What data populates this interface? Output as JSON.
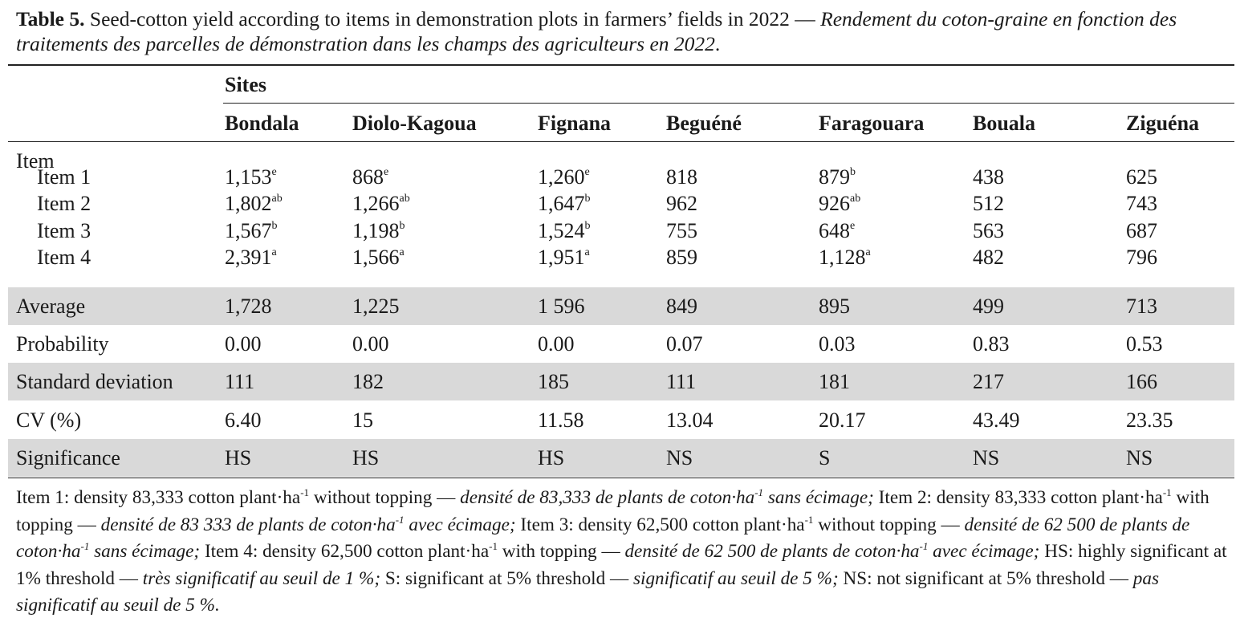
{
  "caption": {
    "label": "Table 5.",
    "english": " Seed-cotton yield according to items in demonstration plots in farmers’ fields in 2022 — ",
    "french": "Rendement du coton-graine en fonction des traitements des parcelles de démonstration dans les champs des agriculteurs en 2022",
    "end": "."
  },
  "table": {
    "group_header": "Sites",
    "sites": [
      "Bondala",
      "Diolo-Kagoua",
      "Fignana",
      "Beguéné",
      "Faragouara",
      "Bouala",
      "Ziguéna"
    ],
    "item_header": "Item",
    "items": [
      {
        "label": "Item 1",
        "cells": [
          [
            "1,153",
            "e"
          ],
          [
            "868",
            "e"
          ],
          [
            "1,260",
            "e"
          ],
          [
            "818",
            ""
          ],
          [
            "879",
            "b"
          ],
          [
            "438",
            ""
          ],
          [
            "625",
            ""
          ]
        ]
      },
      {
        "label": "Item 2",
        "cells": [
          [
            "1,802",
            "ab"
          ],
          [
            "1,266",
            "ab"
          ],
          [
            "1,647",
            "b"
          ],
          [
            "962",
            ""
          ],
          [
            "926",
            "ab"
          ],
          [
            "512",
            ""
          ],
          [
            "743",
            ""
          ]
        ]
      },
      {
        "label": "Item 3",
        "cells": [
          [
            "1,567",
            "b"
          ],
          [
            "1,198",
            "b"
          ],
          [
            "1,524",
            "b"
          ],
          [
            "755",
            ""
          ],
          [
            "648",
            "e"
          ],
          [
            "563",
            ""
          ],
          [
            "687",
            ""
          ]
        ]
      },
      {
        "label": "Item 4",
        "cells": [
          [
            "2,391",
            "a"
          ],
          [
            "1,566",
            "a"
          ],
          [
            "1,951",
            "a"
          ],
          [
            "859",
            ""
          ],
          [
            "1,128",
            "a"
          ],
          [
            "482",
            ""
          ],
          [
            "796",
            ""
          ]
        ]
      }
    ],
    "stats": [
      {
        "label": "Average",
        "values": [
          "1,728",
          "1,225",
          "1 596",
          "849",
          "895",
          "499",
          "713"
        ],
        "shaded": true
      },
      {
        "label": "Probability",
        "values": [
          "0.00",
          "0.00",
          "0.00",
          "0.07",
          "0.03",
          "0.83",
          "0.53"
        ],
        "shaded": false
      },
      {
        "label": "Standard deviation",
        "values": [
          "111",
          "182",
          "185",
          "111",
          "181",
          "217",
          "166"
        ],
        "shaded": true
      },
      {
        "label": "CV (%)",
        "values": [
          "6.40",
          "15",
          "11.58",
          "13.04",
          "20.17",
          "43.49",
          "23.35"
        ],
        "shaded": false
      },
      {
        "label": "Significance",
        "values": [
          "HS",
          "HS",
          "HS",
          "NS",
          "S",
          "NS",
          "NS"
        ],
        "shaded": true
      }
    ],
    "shade_color": "#d9d9d9"
  },
  "footnote": {
    "i1_en_a": "Item 1: density 83,333 cotton plant·ha",
    "i1_en_b": " without topping — ",
    "i1_fr_a": "densité de 83,333 de plants de coton·ha",
    "i1_fr_b": " sans écimage;",
    "i2_en_a": " Item 2: density 83,333 cotton plant·ha",
    "i2_en_b": " with topping — ",
    "i2_fr_a": "densité de 83 333 de plants de coton·ha",
    "i2_fr_b": " avec écimage;",
    "i3_en_a": " Item 3: density 62,500 cotton plant·ha",
    "i3_en_b": " without topping — ",
    "i3_fr_a": "densité de 62 500 de plants de coton·ha",
    "i3_fr_b": " sans écimage;",
    "i4_en_a": " Item 4: density 62,500 cotton plant·ha",
    "i4_en_b": " with topping — ",
    "i4_fr_a": "densité de 62 500 de plants de coton·ha",
    "i4_fr_b": " avec écimage;",
    "hs_en": " HS: highly significant at 1% threshold — ",
    "hs_fr": "très significatif au seuil de 1 %;",
    "s_en": " S: significant at 5% threshold — ",
    "s_fr": "significatif au seuil de 5 %;",
    "ns_en": " NS: not significant at 5% threshold — ",
    "ns_fr": "pas significatif au seuil de 5 %.",
    "exp": "-1"
  }
}
